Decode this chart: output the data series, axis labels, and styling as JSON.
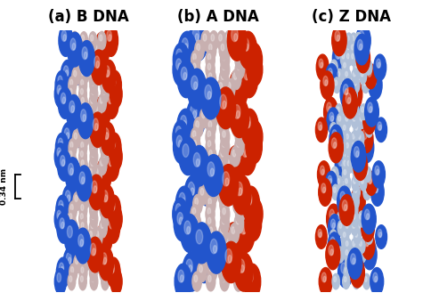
{
  "title_a": "(a) B DNA",
  "title_b": "(b) A DNA",
  "title_c": "(c) Z DNA",
  "title_fontsize": 12,
  "title_fontweight": "bold",
  "bg_color": "#ffffff",
  "annotation_text": "0.34 nm",
  "fig_width": 4.84,
  "fig_height": 3.38,
  "dpi": 100,
  "helix_colors": {
    "blue": "#2255cc",
    "red": "#cc2200",
    "light": "#c8b0b0",
    "light2": "#b0c0d8"
  },
  "arrow_color": "#ffffff"
}
